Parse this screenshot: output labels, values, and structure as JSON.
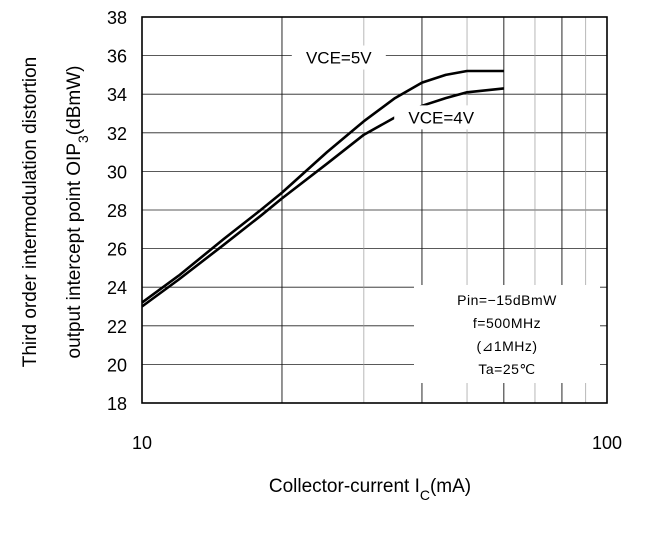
{
  "chart_data": {
    "type": "line",
    "x_scale": "log",
    "xlim": [
      10,
      100
    ],
    "ylim": [
      18,
      38
    ],
    "x_ticks": [
      "10",
      "100"
    ],
    "y_ticks": [
      "18",
      "20",
      "22",
      "24",
      "26",
      "28",
      "30",
      "32",
      "34",
      "36",
      "38"
    ],
    "grid": true,
    "xlabel": {
      "text": "Collector-current I",
      "sub": "C",
      "unit": "(mA)"
    },
    "ylabel_lines": [
      {
        "text": "Third order intermodulation distortion"
      },
      {
        "text": "output intercept point  OIP",
        "sub": "3",
        "unit": "(dBmW)"
      }
    ],
    "series": [
      {
        "name": "VCE=5V",
        "x": [
          10,
          12,
          15,
          18,
          20,
          25,
          30,
          35,
          40,
          45,
          50,
          60
        ],
        "y": [
          23.2,
          24.6,
          26.5,
          28.0,
          28.9,
          31.0,
          32.6,
          33.8,
          34.6,
          35.0,
          35.2,
          35.2
        ]
      },
      {
        "name": "VCE=4V",
        "x": [
          10,
          12,
          15,
          18,
          20,
          25,
          30,
          35,
          40,
          45,
          50,
          60
        ],
        "y": [
          23.0,
          24.4,
          26.2,
          27.7,
          28.6,
          30.4,
          31.9,
          32.8,
          33.4,
          33.8,
          34.1,
          34.3
        ]
      }
    ],
    "conditions": [
      "Pin=−15dBmW",
      "f=500MHz",
      "(⊿1MHz)",
      "Ta=25℃"
    ]
  }
}
